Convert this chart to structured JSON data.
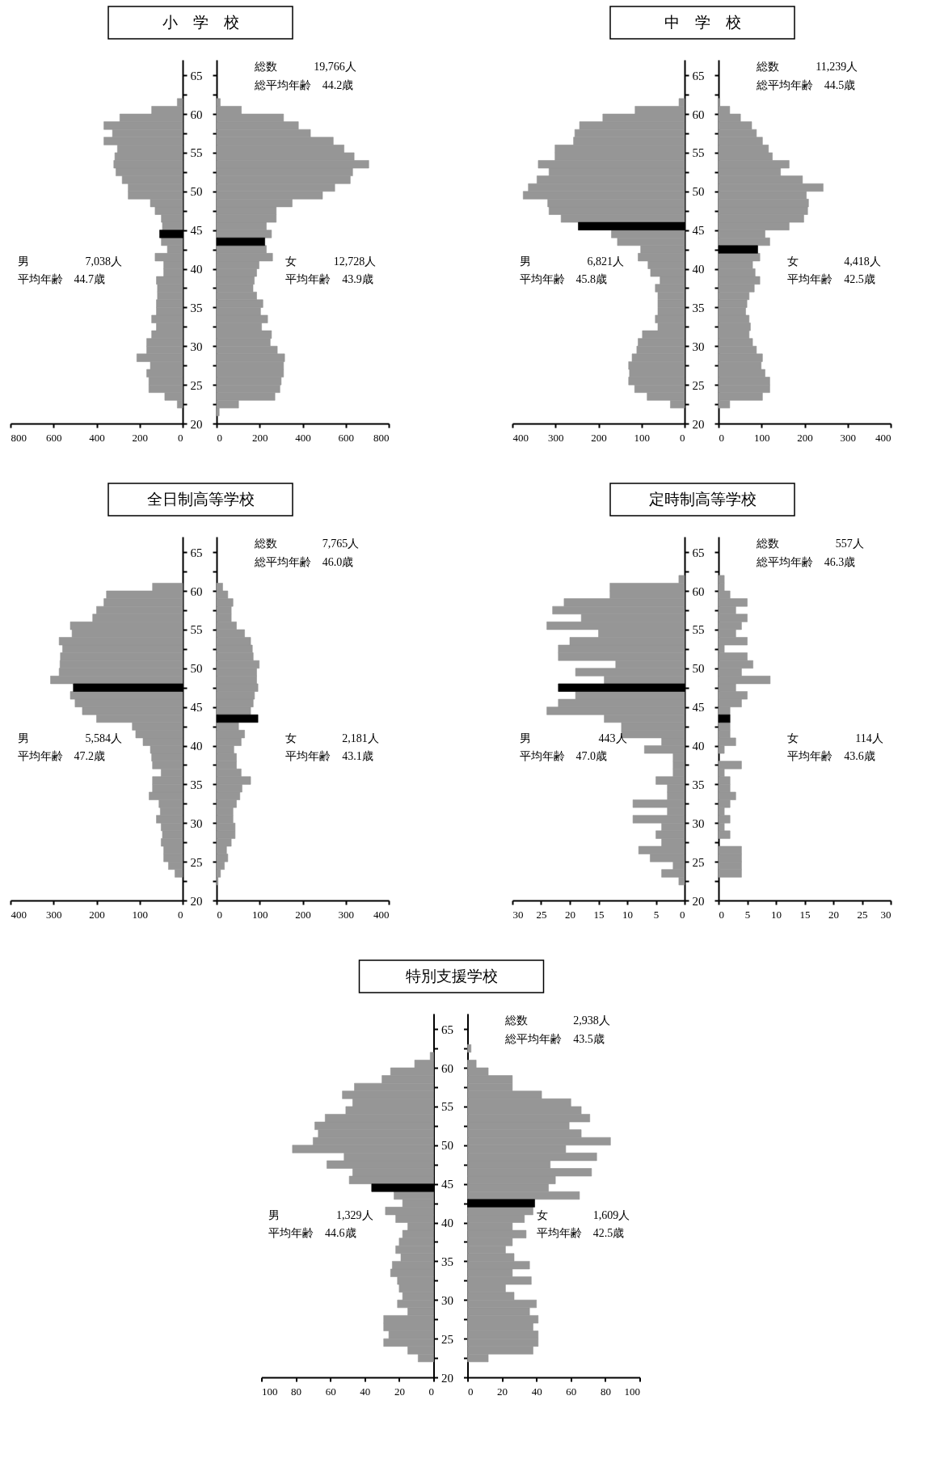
{
  "chart_data": [
    {
      "type": "bar",
      "orientation": "horizontal",
      "title": "小　学　校",
      "annotations": [
        "男　　　　　7,038人",
        "平均年齢　44.7歳"
      ],
      "x": [
        22.5,
        23.5,
        24.5,
        25.5,
        26.5,
        27.5,
        28.5,
        29.5,
        30.5,
        31.5,
        32.5,
        33.5,
        34.5,
        35.5,
        36.5,
        37.5,
        38.5,
        39.5,
        40.5,
        41.5,
        42.5,
        43.5,
        44.5,
        45.5,
        46.5,
        47.5,
        48.5,
        49.5,
        50.5,
        51.5,
        52.5,
        53.5,
        54.5,
        55.5,
        56.5,
        57.5,
        58.5,
        59.5,
        60.5,
        61.5
      ],
      "series": [
        {
          "color": "#969696",
          "values": [
            25,
            83,
            157,
            157,
            167,
            150,
            213,
            167,
            167,
            144,
            122,
            144,
            122,
            122,
            117,
            117,
            122,
            88,
            88,
            128,
            71,
            99,
            null,
            94,
            99,
            128,
            150,
            253,
            253,
            281,
            310,
            320,
            315,
            303,
            366,
            326,
            366,
            292,
            144,
            25
          ]
        },
        {
          "color": "#000000",
          "x": [
            44.5
          ],
          "values": [
            107
          ]
        }
      ],
      "xlim": [
        800,
        0
      ],
      "xticks": [
        800,
        600,
        400,
        200,
        0
      ],
      "ylim": [
        20,
        67
      ],
      "yticks": [
        20,
        {
          "value": 22.5,
          "label": null
        },
        25,
        {
          "value": 27.5,
          "label": null
        },
        30,
        {
          "value": 32.5,
          "label": null
        },
        35,
        {
          "value": 37.5,
          "label": null
        },
        40,
        {
          "value": 42.5,
          "label": null
        },
        45,
        {
          "value": 47.5,
          "label": null
        },
        50,
        {
          "value": 52.5,
          "label": null
        },
        55,
        {
          "value": 57.5,
          "label": null
        },
        60,
        {
          "value": 62.5,
          "label": null
        },
        65
      ]
    },
    {
      "type": "bar",
      "orientation": "horizontal",
      "annotations": [
        "総数　　　 19,766人",
        "総平均年齢　44.2歳",
        "女　　　 12,728人",
        "平均年齢　43.9歳"
      ],
      "tick_labels": "x",
      "x": [
        21.5,
        22.5,
        23.5,
        24.5,
        25.5,
        26.5,
        27.5,
        28.5,
        29.5,
        30.5,
        31.5,
        32.5,
        33.5,
        34.5,
        35.5,
        36.5,
        37.5,
        38.5,
        39.5,
        40.5,
        41.5,
        42.5,
        43.5,
        44.5,
        45.5,
        46.5,
        47.5,
        48.5,
        49.5,
        50.5,
        51.5,
        52.5,
        53.5,
        54.5,
        55.5,
        56.5,
        57.5,
        58.5,
        59.5,
        60.5,
        61.5
      ],
      "series": [
        {
          "color": "#969696",
          "values": [
            12,
            102,
            271,
            294,
            300,
            311,
            311,
            316,
            282,
            249,
            255,
            209,
            237,
            204,
            215,
            186,
            169,
            175,
            186,
            197,
            260,
            231,
            null,
            255,
            231,
            277,
            277,
            351,
            492,
            549,
            621,
            632,
            707,
            639,
            592,
            542,
            436,
            380,
            311,
            115,
            17
          ]
        },
        {
          "color": "#000000",
          "x": [
            43.5
          ],
          "values": [
            224
          ]
        }
      ],
      "xlim": [
        0,
        800
      ],
      "xticks": [
        0,
        200,
        400,
        600,
        800
      ],
      "ylim": [
        20,
        67
      ],
      "yticks": [
        20,
        {
          "value": 22.5,
          "label": null
        },
        25,
        {
          "value": 27.5,
          "label": null
        },
        30,
        {
          "value": 32.5,
          "label": null
        },
        35,
        {
          "value": 37.5,
          "label": null
        },
        40,
        {
          "value": 42.5,
          "label": null
        },
        45,
        {
          "value": 47.5,
          "label": null
        },
        50,
        {
          "value": 52.5,
          "label": null
        },
        55,
        {
          "value": 57.5,
          "label": null
        },
        60,
        {
          "value": 62.5,
          "label": null
        },
        65
      ]
    },
    {
      "type": "bar",
      "orientation": "horizontal",
      "title": "中　学　校",
      "annotations": [
        "男　　　　　6,821人",
        "平均年齢　45.8歳"
      ],
      "x": [
        22.5,
        23.5,
        24.5,
        25.5,
        26.5,
        27.5,
        28.5,
        29.5,
        30.5,
        31.5,
        32.5,
        33.5,
        34.5,
        35.5,
        36.5,
        37.5,
        38.5,
        39.5,
        40.5,
        41.5,
        42.5,
        43.5,
        44.5,
        45.5,
        46.5,
        47.5,
        48.5,
        49.5,
        50.5,
        51.5,
        52.5,
        53.5,
        54.5,
        55.5,
        56.5,
        57.5,
        58.5,
        59.5,
        60.5,
        61.5
      ],
      "series": [
        {
          "color": "#969696",
          "values": [
            33,
            87,
            116,
            130,
            128,
            130,
            122,
            111,
            108,
            98,
            62,
            68,
            62,
            62,
            62,
            68,
            57,
            79,
            85,
            108,
            102,
            156,
            170,
            null,
            287,
            315,
            318,
            375,
            363,
            343,
            315,
            340,
            301,
            301,
            258,
            255,
            244,
            190,
            115,
            13
          ]
        },
        {
          "color": "#000000",
          "x": [
            45.5
          ],
          "values": [
            247
          ]
        }
      ],
      "xlim": [
        400,
        0
      ],
      "xticks": [
        400,
        300,
        200,
        100,
        0
      ],
      "ylim": [
        20,
        67
      ],
      "yticks": [
        20,
        {
          "value": 22.5,
          "label": null
        },
        25,
        {
          "value": 27.5,
          "label": null
        },
        30,
        {
          "value": 32.5,
          "label": null
        },
        35,
        {
          "value": 37.5,
          "label": null
        },
        40,
        {
          "value": 42.5,
          "label": null
        },
        45,
        {
          "value": 47.5,
          "label": null
        },
        50,
        {
          "value": 52.5,
          "label": null
        },
        55,
        {
          "value": 57.5,
          "label": null
        },
        60,
        {
          "value": 62.5,
          "label": null
        },
        65
      ]
    },
    {
      "type": "bar",
      "orientation": "horizontal",
      "annotations": [
        "総数　　　 11,239人",
        "総平均年齢　44.5歳",
        "女　　　　4,418人",
        "平均年齢　42.5歳"
      ],
      "tick_labels": "x",
      "x": [
        22.5,
        23.5,
        24.5,
        25.5,
        26.5,
        27.5,
        28.5,
        29.5,
        30.5,
        31.5,
        32.5,
        33.5,
        34.5,
        35.5,
        36.5,
        37.5,
        38.5,
        39.5,
        40.5,
        41.5,
        42.5,
        43.5,
        44.5,
        45.5,
        46.5,
        47.5,
        48.5,
        49.5,
        50.5,
        51.5,
        52.5,
        53.5,
        54.5,
        55.5,
        56.5,
        57.5,
        58.5,
        59.5,
        60.5,
        61.5
      ],
      "series": [
        {
          "color": "#969696",
          "values": [
            26,
            102,
            119,
            119,
            108,
            99,
            102,
            88,
            79,
            71,
            74,
            71,
            63,
            66,
            71,
            83,
            96,
            85,
            79,
            96,
            null,
            119,
            108,
            164,
            198,
            207,
            209,
            204,
            243,
            195,
            144,
            164,
            125,
            116,
            102,
            88,
            77,
            51,
            26,
            3
          ]
        },
        {
          "color": "#000000",
          "x": [
            42.5
          ],
          "values": [
            91
          ]
        }
      ],
      "xlim": [
        0,
        400
      ],
      "xticks": [
        0,
        100,
        200,
        300,
        400
      ],
      "ylim": [
        20,
        67
      ],
      "yticks": [
        20,
        {
          "value": 22.5,
          "label": null
        },
        25,
        {
          "value": 27.5,
          "label": null
        },
        30,
        {
          "value": 32.5,
          "label": null
        },
        35,
        {
          "value": 37.5,
          "label": null
        },
        40,
        {
          "value": 42.5,
          "label": null
        },
        45,
        {
          "value": 47.5,
          "label": null
        },
        50,
        {
          "value": 52.5,
          "label": null
        },
        55,
        {
          "value": 57.5,
          "label": null
        },
        60,
        {
          "value": 62.5,
          "label": null
        },
        65
      ]
    },
    {
      "type": "bar",
      "orientation": "horizontal",
      "title": "全日制高等学校",
      "annotations": [
        "男　　　　　5,584人",
        "平均年齢　47.2歳"
      ],
      "x": [
        23.5,
        24.5,
        25.5,
        26.5,
        27.5,
        28.5,
        29.5,
        30.5,
        31.5,
        32.5,
        33.5,
        34.5,
        35.5,
        36.5,
        37.5,
        38.5,
        39.5,
        40.5,
        41.5,
        42.5,
        43.5,
        44.5,
        45.5,
        46.5,
        47.5,
        48.5,
        49.5,
        50.5,
        51.5,
        52.5,
        53.5,
        54.5,
        55.5,
        56.5,
        57.5,
        58.5,
        59.5,
        60.5
      ],
      "series": [
        {
          "color": "#969696",
          "values": [
            18,
            33,
            44,
            44,
            50,
            47,
            50,
            61,
            52,
            55,
            78,
            70,
            70,
            50,
            70,
            72,
            75,
            92,
            109,
            117,
            200,
            233,
            250,
            261,
            null,
            307,
            287,
            285,
            284,
            279,
            287,
            257,
            261,
            209,
            200,
            183,
            177,
            70
          ]
        },
        {
          "color": "#000000",
          "x": [
            47.5
          ],
          "values": [
            254
          ]
        }
      ],
      "xlim": [
        400,
        0
      ],
      "xticks": [
        400,
        300,
        200,
        100,
        0
      ],
      "ylim": [
        20,
        67
      ],
      "yticks": [
        20,
        {
          "value": 22.5,
          "label": null
        },
        25,
        {
          "value": 27.5,
          "label": null
        },
        30,
        {
          "value": 32.5,
          "label": null
        },
        35,
        {
          "value": 37.5,
          "label": null
        },
        40,
        {
          "value": 42.5,
          "label": null
        },
        45,
        {
          "value": 47.5,
          "label": null
        },
        50,
        {
          "value": 52.5,
          "label": null
        },
        55,
        {
          "value": 57.5,
          "label": null
        },
        60,
        {
          "value": 62.5,
          "label": null
        },
        65
      ]
    },
    {
      "type": "bar",
      "orientation": "horizontal",
      "annotations": [
        "総数　　　　7,765人",
        "総平均年齢　46.0歳",
        "女　　　　2,181人",
        "平均年齢　43.1歳"
      ],
      "tick_labels": "x",
      "x": [
        22.5,
        23.5,
        24.5,
        25.5,
        26.5,
        27.5,
        28.5,
        29.5,
        30.5,
        31.5,
        32.5,
        33.5,
        34.5,
        35.5,
        36.5,
        37.5,
        38.5,
        39.5,
        40.5,
        41.5,
        42.5,
        43.5,
        44.5,
        45.5,
        46.5,
        47.5,
        48.5,
        49.5,
        50.5,
        51.5,
        52.5,
        53.5,
        54.5,
        55.5,
        56.5,
        57.5,
        58.5,
        59.5,
        60.5
      ],
      "series": [
        {
          "color": "#969696",
          "values": [
            3,
            9,
            18,
            26,
            23,
            34,
            43,
            43,
            38,
            38,
            46,
            54,
            59,
            79,
            57,
            46,
            46,
            40,
            57,
            65,
            51,
            null,
            79,
            85,
            88,
            96,
            93,
            93,
            99,
            85,
            83,
            79,
            65,
            46,
            34,
            34,
            38,
            26,
            14
          ]
        },
        {
          "color": "#000000",
          "x": [
            43.5
          ],
          "values": [
            96
          ]
        }
      ],
      "xlim": [
        0,
        400
      ],
      "xticks": [
        0,
        100,
        200,
        300,
        400
      ],
      "ylim": [
        20,
        67
      ],
      "yticks": [
        20,
        {
          "value": 22.5,
          "label": null
        },
        25,
        {
          "value": 27.5,
          "label": null
        },
        30,
        {
          "value": 32.5,
          "label": null
        },
        35,
        {
          "value": 37.5,
          "label": null
        },
        40,
        {
          "value": 42.5,
          "label": null
        },
        45,
        {
          "value": 47.5,
          "label": null
        },
        50,
        {
          "value": 52.5,
          "label": null
        },
        55,
        {
          "value": 57.5,
          "label": null
        },
        60,
        {
          "value": 62.5,
          "label": null
        },
        65
      ]
    },
    {
      "type": "bar",
      "orientation": "horizontal",
      "title": "定時制高等学校",
      "annotations": [
        "男　　　　　　443人",
        "平均年齢　47.0歳"
      ],
      "x": [
        22.5,
        23.5,
        24.5,
        25.5,
        26.5,
        27.5,
        28.5,
        29.5,
        30.5,
        31.5,
        32.5,
        33.5,
        34.5,
        35.5,
        36.5,
        37.5,
        38.5,
        39.5,
        40.5,
        41.5,
        42.5,
        43.5,
        44.5,
        45.5,
        46.5,
        47.5,
        48.5,
        49.5,
        50.5,
        51.5,
        52.5,
        53.5,
        54.5,
        55.5,
        56.5,
        57.5,
        58.5,
        59.5,
        60.5,
        61.5
      ],
      "series": [
        {
          "color": "#969696",
          "values": [
            1,
            4,
            2,
            6,
            8,
            4,
            5,
            4,
            9,
            3,
            9,
            3,
            3,
            5,
            2,
            2,
            2,
            7,
            4,
            11,
            11,
            14,
            24,
            22,
            19,
            null,
            14,
            19,
            12,
            22,
            22,
            20,
            15,
            24,
            18,
            23,
            21,
            13,
            13,
            1
          ]
        },
        {
          "color": "#000000",
          "x": [
            47.5
          ],
          "values": [
            22
          ]
        }
      ],
      "xlim": [
        30,
        0
      ],
      "xticks": [
        30,
        25,
        20,
        15,
        10,
        5,
        0
      ],
      "ylim": [
        20,
        67
      ],
      "yticks": [
        20,
        {
          "value": 22.5,
          "label": null
        },
        25,
        {
          "value": 27.5,
          "label": null
        },
        30,
        {
          "value": 32.5,
          "label": null
        },
        35,
        {
          "value": 37.5,
          "label": null
        },
        40,
        {
          "value": 42.5,
          "label": null
        },
        45,
        {
          "value": 47.5,
          "label": null
        },
        50,
        {
          "value": 52.5,
          "label": null
        },
        55,
        {
          "value": 57.5,
          "label": null
        },
        60,
        {
          "value": 62.5,
          "label": null
        },
        65
      ]
    },
    {
      "type": "bar",
      "orientation": "horizontal",
      "annotations": [
        "総数　　　　　557人",
        "総平均年齢　46.3歳",
        "女　　　　　114人",
        "平均年齢　43.6歳"
      ],
      "tick_labels": "x",
      "x": [
        23.5,
        24.5,
        25.5,
        26.5,
        27.5,
        28.5,
        29.5,
        30.5,
        31.5,
        32.5,
        33.5,
        34.5,
        35.5,
        36.5,
        37.5,
        38.5,
        39.5,
        40.5,
        41.5,
        42.5,
        43.5,
        44.5,
        45.5,
        46.5,
        47.5,
        48.5,
        49.5,
        50.5,
        51.5,
        52.5,
        53.5,
        54.5,
        55.5,
        56.5,
        57.5,
        58.5,
        59.5,
        60.5,
        61.5
      ],
      "series": [
        {
          "color": "#969696",
          "values": [
            4,
            4,
            4,
            4,
            null,
            2,
            1,
            2,
            1,
            2,
            3,
            2,
            2,
            1,
            4,
            null,
            1,
            3,
            2,
            2,
            null,
            2,
            4,
            5,
            3,
            9,
            4,
            6,
            5,
            1,
            5,
            3,
            4,
            5,
            3,
            5,
            2,
            1,
            1
          ]
        },
        {
          "color": "#000000",
          "x": [
            43.5
          ],
          "values": [
            2
          ]
        }
      ],
      "xlim": [
        0,
        30
      ],
      "xticks": [
        0,
        5,
        10,
        15,
        20,
        25,
        30
      ],
      "ylim": [
        20,
        67
      ],
      "yticks": [
        20,
        {
          "value": 22.5,
          "label": null
        },
        25,
        {
          "value": 27.5,
          "label": null
        },
        30,
        {
          "value": 32.5,
          "label": null
        },
        35,
        {
          "value": 37.5,
          "label": null
        },
        40,
        {
          "value": 42.5,
          "label": null
        },
        45,
        {
          "value": 47.5,
          "label": null
        },
        50,
        {
          "value": 52.5,
          "label": null
        },
        55,
        {
          "value": 57.5,
          "label": null
        },
        60,
        {
          "value": 62.5,
          "label": null
        },
        65
      ]
    },
    {
      "type": "bar",
      "orientation": "horizontal",
      "title": "特別支援学校",
      "annotations": [
        "男　　　　　1,329人",
        "平均年齢　44.6歳"
      ],
      "x": [
        22.5,
        23.5,
        24.5,
        25.5,
        26.5,
        27.5,
        28.5,
        29.5,
        30.5,
        31.5,
        32.5,
        33.5,
        34.5,
        35.5,
        36.5,
        37.5,
        38.5,
        39.5,
        40.5,
        41.5,
        42.5,
        43.5,
        44.5,
        45.5,
        46.5,
        47.5,
        48.5,
        49.5,
        50.5,
        51.5,
        52.5,
        53.5,
        54.5,
        55.5,
        56.5,
        57.5,
        58.5,
        59.5,
        60.5,
        61.5
      ],
      "series": [
        {
          "color": "#969696",
          "values": [
            9,
            15,
            29,
            26,
            29,
            29,
            15,
            21,
            18,
            20,
            21,
            25,
            24,
            19,
            22,
            20,
            18,
            15,
            22,
            28,
            18,
            23,
            null,
            49,
            47,
            62,
            52,
            82,
            70,
            67,
            69,
            63,
            51,
            47,
            53,
            46,
            30,
            25,
            11,
            2
          ]
        },
        {
          "color": "#000000",
          "x": [
            44.5
          ],
          "values": [
            36
          ]
        }
      ],
      "xlim": [
        100,
        0
      ],
      "xticks": [
        100,
        80,
        60,
        40,
        20,
        0
      ],
      "ylim": [
        20,
        67
      ],
      "yticks": [
        20,
        {
          "value": 22.5,
          "label": null
        },
        25,
        {
          "value": 27.5,
          "label": null
        },
        30,
        {
          "value": 32.5,
          "label": null
        },
        35,
        {
          "value": 37.5,
          "label": null
        },
        40,
        {
          "value": 42.5,
          "label": null
        },
        45,
        {
          "value": 47.5,
          "label": null
        },
        50,
        {
          "value": 52.5,
          "label": null
        },
        55,
        {
          "value": 57.5,
          "label": null
        },
        60,
        {
          "value": 62.5,
          "label": null
        },
        65
      ]
    },
    {
      "type": "bar",
      "orientation": "horizontal",
      "annotations": [
        "総数　　　　2,938人",
        "総平均年齢　43.5歳",
        "女　　　　1,609人",
        "平均年齢　42.5歳"
      ],
      "tick_labels": "x",
      "x": [
        22.5,
        23.5,
        24.5,
        25.5,
        26.5,
        27.5,
        28.5,
        29.5,
        30.5,
        31.5,
        32.5,
        33.5,
        34.5,
        35.5,
        36.5,
        37.5,
        38.5,
        39.5,
        40.5,
        41.5,
        42.5,
        43.5,
        44.5,
        45.5,
        46.5,
        47.5,
        48.5,
        49.5,
        50.5,
        51.5,
        52.5,
        53.5,
        54.5,
        55.5,
        56.5,
        57.5,
        58.5,
        59.5,
        60.5,
        61.5,
        62.5
      ],
      "series": [
        {
          "color": "#969696",
          "values": [
            12,
            38,
            41,
            41,
            38,
            41,
            36,
            40,
            27,
            22,
            37,
            26,
            36,
            27,
            22,
            26,
            34,
            26,
            33,
            38,
            null,
            65,
            47,
            51,
            72,
            48,
            75,
            57,
            83,
            66,
            59,
            71,
            66,
            60,
            43,
            26,
            26,
            12,
            5,
            null,
            2
          ]
        },
        {
          "color": "#000000",
          "x": [
            42.5
          ],
          "values": [
            39
          ]
        }
      ],
      "xlim": [
        0,
        100
      ],
      "xticks": [
        0,
        20,
        40,
        60,
        80,
        100
      ],
      "ylim": [
        20,
        67
      ],
      "yticks": [
        20,
        {
          "value": 22.5,
          "label": null
        },
        25,
        {
          "value": 27.5,
          "label": null
        },
        30,
        {
          "value": 32.5,
          "label": null
        },
        35,
        {
          "value": 37.5,
          "label": null
        },
        40,
        {
          "value": 42.5,
          "label": null
        },
        45,
        {
          "value": 47.5,
          "label": null
        },
        50,
        {
          "value": 52.5,
          "label": null
        },
        55,
        {
          "value": 57.5,
          "label": null
        },
        60,
        {
          "value": 62.5,
          "label": null
        },
        65
      ]
    }
  ]
}
